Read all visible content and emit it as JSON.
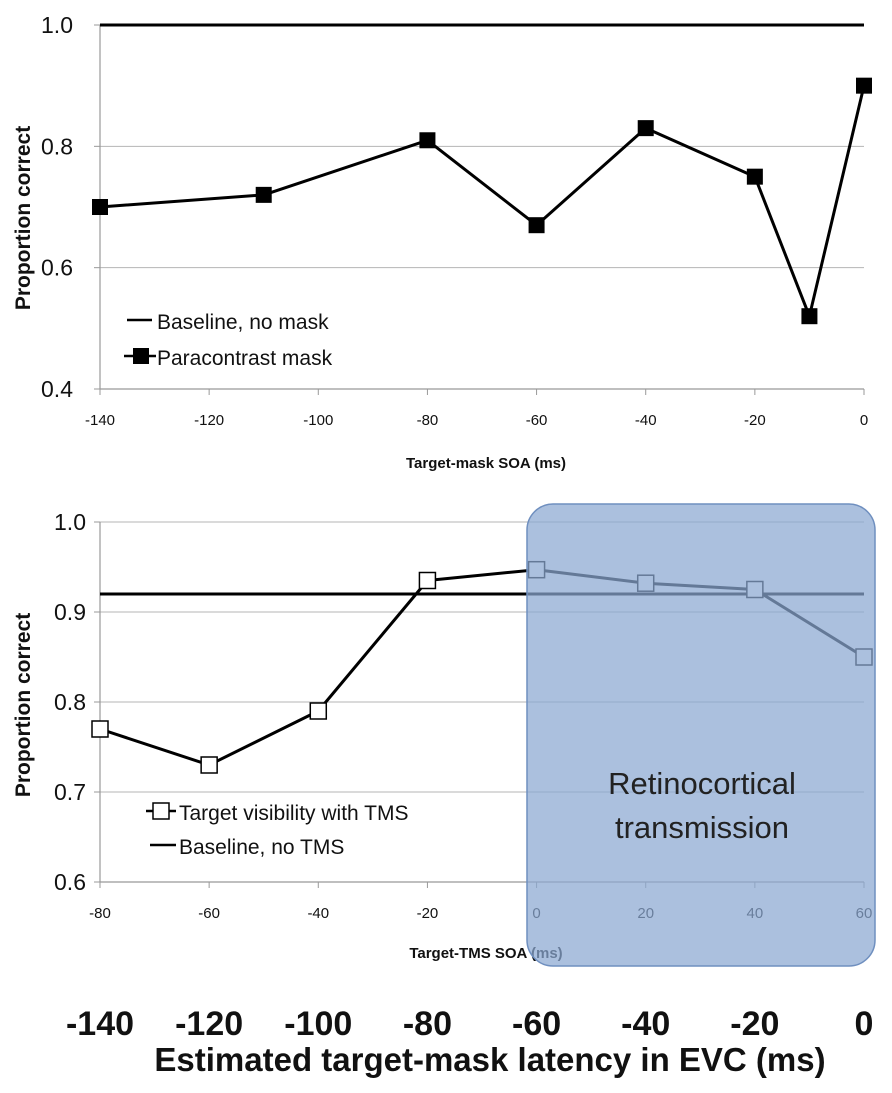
{
  "chart_data": [
    {
      "type": "line",
      "title": "",
      "xlabel": "Target-mask SOA (ms)",
      "ylabel": "Proportion correct",
      "xlim": [
        -140,
        0
      ],
      "ylim": [
        0.4,
        1.0
      ],
      "xticks": [
        "-140",
        "-120",
        "-100",
        "-80",
        "-60",
        "-40",
        "-20",
        "0"
      ],
      "yticks": [
        "0.4",
        "0.6",
        "0.8",
        "1.0"
      ],
      "grid": true,
      "legend_position": "bottom-left",
      "series": [
        {
          "name": "Baseline, no mask",
          "x": [
            -140,
            0
          ],
          "values": [
            1.0,
            1.0
          ],
          "marker": "none"
        },
        {
          "name": "Paracontrast mask",
          "x": [
            -140,
            -110,
            -80,
            -60,
            -40,
            -20,
            -10,
            0
          ],
          "values": [
            0.7,
            0.72,
            0.81,
            0.67,
            0.83,
            0.75,
            0.52,
            0.9
          ],
          "marker": "filled-square"
        }
      ]
    },
    {
      "type": "line",
      "title": "",
      "xlabel": "Target-TMS SOA (ms)",
      "ylabel": "Proportion correct",
      "xlim": [
        -80,
        60
      ],
      "ylim": [
        0.6,
        1.0
      ],
      "xticks": [
        "-80",
        "-60",
        "-40",
        "-20",
        "0",
        "20",
        "40",
        "60"
      ],
      "yticks": [
        "0.6",
        "0.7",
        "0.8",
        "0.9",
        "1.0"
      ],
      "grid": true,
      "legend_position": "bottom-left",
      "series": [
        {
          "name": "Target visibility with TMS",
          "x": [
            -80,
            -60,
            -40,
            -20,
            0,
            20,
            40,
            60
          ],
          "values": [
            0.77,
            0.73,
            0.79,
            0.935,
            0.947,
            0.932,
            0.925,
            0.85
          ],
          "marker": "open-square"
        },
        {
          "name": "Baseline, no TMS",
          "x": [
            -80,
            60
          ],
          "values": [
            0.92,
            0.92
          ],
          "marker": "none"
        }
      ],
      "highlight": {
        "label_lines": [
          "Retinocortical",
          "transmission"
        ],
        "x_from": 0,
        "x_to": 60,
        "color": "#9db3d6"
      }
    }
  ],
  "bottom_axis": {
    "ticks": [
      "-140",
      "-120",
      "-100",
      "-80",
      "-60",
      "-40",
      "-20",
      "0"
    ],
    "label": "Estimated target-mask latency in EVC (ms)"
  }
}
